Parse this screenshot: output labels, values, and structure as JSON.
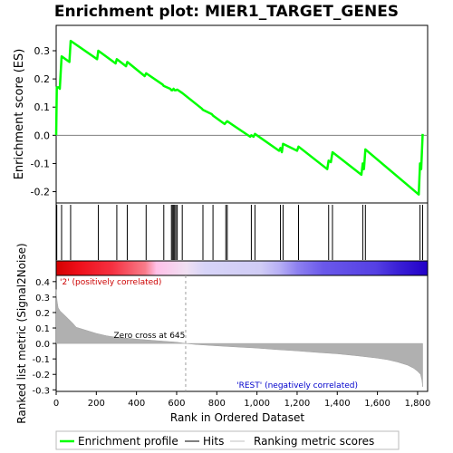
{
  "chart_data": [
    {
      "type": "line",
      "title": "Enrichment plot: MIER1_TARGET_GENES",
      "ylabel": "Enrichment score (ES)",
      "xlim": [
        0,
        1850
      ],
      "ylim": [
        -0.24,
        0.39
      ],
      "yticks": [
        -0.2,
        -0.1,
        0.0,
        0.1,
        0.2,
        0.3
      ],
      "ytick_labels": [
        "-0.2",
        "-0.1",
        "0.0",
        "0.1",
        "0.2",
        "0.3"
      ],
      "series": [
        {
          "name": "Enrichment profile",
          "color": "#00ff00",
          "x": [
            0,
            3,
            12,
            18,
            27,
            66,
            72,
            204,
            210,
            296,
            302,
            348,
            354,
            441,
            448,
            530,
            536,
            568,
            574,
            579,
            585,
            590,
            596,
            603,
            628,
            725,
            731,
            775,
            781,
            839,
            845,
            852,
            966,
            972,
            983,
            990,
            1110,
            1117,
            1124,
            1130,
            1200,
            1207,
            1350,
            1357,
            1368,
            1376,
            1520,
            1527,
            1533,
            1540,
            1806,
            1812,
            1818,
            1825
          ],
          "y": [
            0.0,
            0.17,
            0.17,
            0.165,
            0.28,
            0.26,
            0.335,
            0.27,
            0.3,
            0.255,
            0.27,
            0.245,
            0.26,
            0.21,
            0.22,
            0.18,
            0.175,
            0.165,
            0.16,
            0.16,
            0.165,
            0.16,
            0.16,
            0.162,
            0.15,
            0.095,
            0.09,
            0.075,
            0.07,
            0.04,
            0.045,
            0.05,
            -0.005,
            0.0,
            -0.005,
            0.005,
            -0.055,
            -0.045,
            -0.06,
            -0.03,
            -0.055,
            -0.04,
            -0.12,
            -0.09,
            -0.095,
            -0.06,
            -0.14,
            -0.1,
            -0.12,
            -0.05,
            -0.21,
            -0.1,
            -0.12,
            0.005
          ]
        }
      ],
      "hits": [
        3,
        27,
        72,
        210,
        302,
        354,
        448,
        536,
        574,
        579,
        585,
        590,
        596,
        603,
        628,
        731,
        781,
        845,
        852,
        972,
        990,
        1117,
        1130,
        1207,
        1357,
        1376,
        1527,
        1540,
        1812,
        1825
      ]
    },
    {
      "type": "area",
      "xlabel": "Rank in Ordered Dataset",
      "ylabel": "Ranked list metric (Signal2Noise)",
      "xlim": [
        0,
        1850
      ],
      "ylim": [
        -0.31,
        0.44
      ],
      "yticks": [
        -0.3,
        -0.2,
        -0.1,
        0.0,
        0.1,
        0.2,
        0.3,
        0.4
      ],
      "ytick_labels": [
        "-0.3",
        "-0.2",
        "-0.1",
        "0.0",
        "0.1",
        "0.2",
        "0.3",
        "0.4"
      ],
      "xticks": [
        0,
        200,
        400,
        600,
        800,
        1000,
        1200,
        1400,
        1600,
        1800
      ],
      "xtick_labels": [
        "0",
        "200",
        "400",
        "600",
        "800",
        "1,000",
        "1,200",
        "1,400",
        "1,600",
        "1,800"
      ],
      "x": [
        0,
        2,
        5,
        10,
        20,
        40,
        60,
        80,
        100,
        150,
        200,
        250,
        300,
        400,
        500,
        600,
        645,
        700,
        800,
        900,
        1000,
        1100,
        1200,
        1300,
        1400,
        1500,
        1600,
        1650,
        1700,
        1750,
        1780,
        1800,
        1815,
        1822,
        1825
      ],
      "values": [
        0.35,
        0.31,
        0.27,
        0.23,
        0.21,
        0.185,
        0.16,
        0.135,
        0.105,
        0.085,
        0.065,
        0.05,
        0.04,
        0.028,
        0.018,
        0.008,
        0.0,
        -0.007,
        -0.015,
        -0.023,
        -0.03,
        -0.04,
        -0.048,
        -0.058,
        -0.067,
        -0.08,
        -0.095,
        -0.105,
        -0.12,
        -0.14,
        -0.16,
        -0.18,
        -0.2,
        -0.24,
        -0.28
      ],
      "color": "#b0b0b0",
      "zero_cross_label": "Zero cross at 645",
      "zero_cross_rank": 645,
      "positive_label": "'2' (positively correlated)",
      "negative_label": "'REST' (negatively correlated)"
    }
  ],
  "legend": {
    "items": [
      {
        "label": "Enrichment profile",
        "color": "#00ff00"
      },
      {
        "label": "Hits",
        "color": "#000000"
      },
      {
        "label": "Ranking metric scores",
        "color": "#c0c0c0"
      }
    ]
  },
  "colors": {
    "hit_line": "#000000",
    "zero_line": "#808080",
    "panel_border": "#000000"
  }
}
